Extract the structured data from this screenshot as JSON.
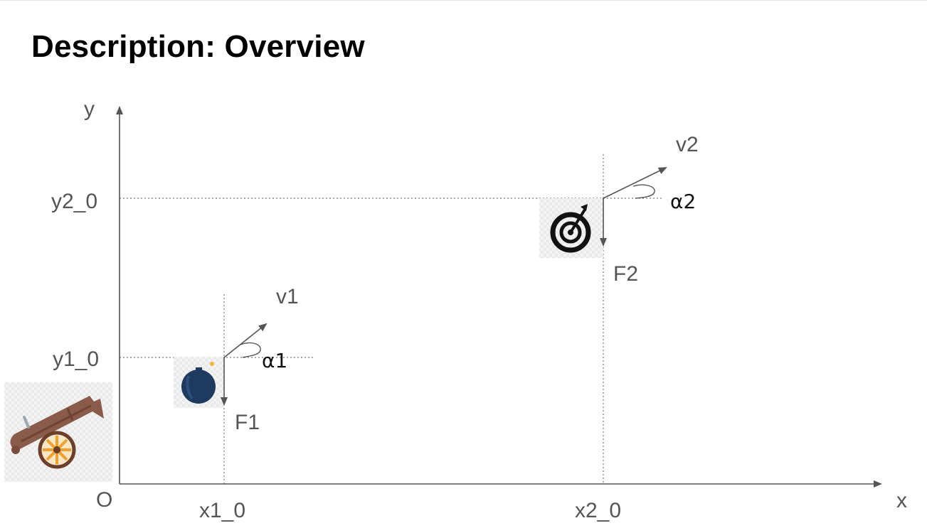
{
  "title": "Description: Overview",
  "axes": {
    "y_label": "y",
    "x_label": "x",
    "origin_label": "O"
  },
  "ticks": {
    "y2_0": "y2_0",
    "y1_0": "y1_0",
    "x1_0": "x1_0",
    "x2_0": "x2_0"
  },
  "object1": {
    "velocity_label": "v1",
    "angle_label": "α1",
    "force_label": "F1"
  },
  "object2": {
    "velocity_label": "v2",
    "angle_label": "α2",
    "force_label": "F2"
  },
  "icons": {
    "cannon": "cannon-icon",
    "bomb": "bomb-icon",
    "target": "target-icon"
  },
  "colors": {
    "axis": "#555555",
    "label": "#555555",
    "angle_label": "#111111",
    "bomb": "#1e3a5f",
    "cannon_barrel": "#8a5a4a",
    "wheel_rim": "#6b3f2a",
    "wheel_spokes": "#f0a030"
  }
}
